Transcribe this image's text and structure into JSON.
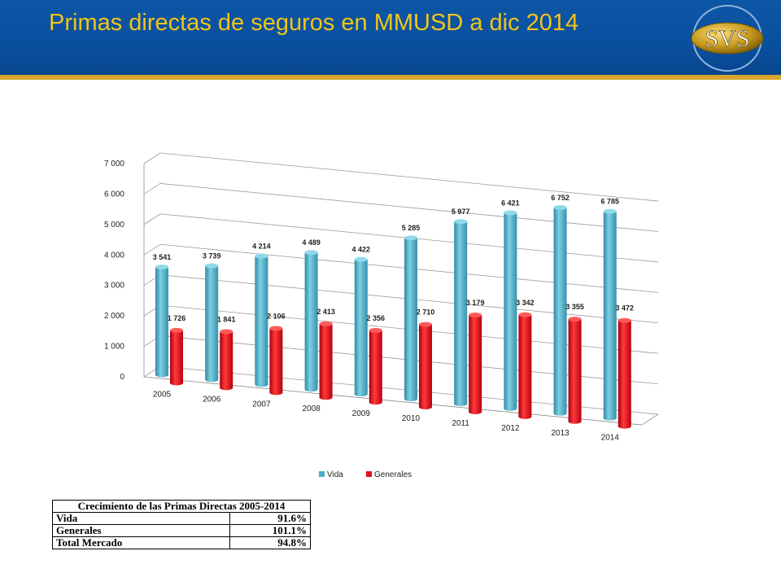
{
  "title": "Primas directas de seguros en MMUSD a dic 2014",
  "logo": {
    "text": "SVS"
  },
  "colors": {
    "header": "#0a4f9e",
    "title": "#f2c418",
    "stripe": "#d8a62d",
    "vida": "#4bacc6",
    "generales": "#e0101a"
  },
  "chart_data": {
    "type": "bar",
    "subtype": "3d-clustered-column",
    "categories": [
      "2005",
      "2006",
      "2007",
      "2008",
      "2009",
      "2010",
      "2011",
      "2012",
      "2013",
      "2014"
    ],
    "series": [
      {
        "name": "Vida",
        "color": "#4bacc6",
        "values": [
          3541,
          3739,
          4214,
          4489,
          4422,
          5285,
          5977,
          6421,
          6752,
          6785
        ],
        "labels": [
          "3 541",
          "3 739",
          "4 214",
          "4 489",
          "4 422",
          "5 285",
          "5 977",
          "6 421",
          "6 752",
          "6 785"
        ]
      },
      {
        "name": "Generales",
        "color": "#e0101a",
        "values": [
          1726,
          1841,
          2106,
          2413,
          2356,
          2710,
          3179,
          3342,
          3355,
          3472
        ],
        "labels": [
          "1 726",
          "1 841",
          "2 106",
          "2 413",
          "2 356",
          "2 710",
          "3 179",
          "3 342",
          "3 355",
          "3 472"
        ]
      }
    ],
    "yticks": [
      "0",
      "1 000",
      "2 000",
      "3 000",
      "4 000",
      "5 000",
      "6 000",
      "7 000"
    ],
    "ylim": [
      0,
      7000
    ],
    "grid": true,
    "legend_position": "bottom",
    "xlabel": "",
    "ylabel": ""
  },
  "table": {
    "header": "Crecimiento de las Primas Directas 2005-2014",
    "rows": [
      {
        "label": "Vida",
        "value": "91.6%"
      },
      {
        "label": "Generales",
        "value": "101.1%"
      },
      {
        "label": "Total Mercado",
        "value": "94.8%"
      }
    ]
  }
}
